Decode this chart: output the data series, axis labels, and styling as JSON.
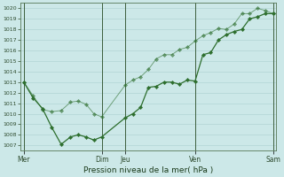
{
  "title": "Pression niveau de la mer( hPa )",
  "ylim": [
    1006.5,
    1020.5
  ],
  "yticks": [
    1007,
    1008,
    1009,
    1010,
    1011,
    1012,
    1013,
    1014,
    1015,
    1016,
    1017,
    1018,
    1019,
    1020
  ],
  "bg_color": "#cce8e8",
  "grid_color": "#aacfcf",
  "line_color": "#2d6e2d",
  "xtick_labels": [
    "Mer",
    "Dim",
    "Jeu",
    "Ven",
    "Sam"
  ],
  "xtick_positions": [
    0,
    5,
    6.5,
    11,
    16
  ],
  "vline_positions": [
    0,
    5,
    6.5,
    11,
    16
  ],
  "line1_x": [
    0,
    0.6,
    1.2,
    1.8,
    2.4,
    3.0,
    3.5,
    4.0,
    4.5,
    5.0,
    6.5,
    7.0,
    7.5,
    8.0,
    8.5,
    9.0,
    9.5,
    10.0,
    10.5,
    11.0,
    11.5,
    12.0,
    12.5,
    13.0,
    13.5,
    14.0,
    14.5,
    15.0,
    15.5,
    16.0
  ],
  "line1_y": [
    1013.0,
    1011.5,
    1010.5,
    1008.7,
    1007.1,
    1007.8,
    1008.0,
    1007.8,
    1007.5,
    1007.8,
    1009.6,
    1010.0,
    1010.6,
    1012.5,
    1012.6,
    1013.0,
    1013.0,
    1012.8,
    1013.2,
    1013.1,
    1015.6,
    1015.8,
    1017.0,
    1017.5,
    1017.8,
    1018.0,
    1019.0,
    1019.2,
    1019.5,
    1019.5
  ],
  "line2_x": [
    0,
    0.6,
    1.2,
    1.8,
    2.4,
    3.0,
    3.5,
    4.0,
    4.5,
    5.0,
    6.5,
    7.0,
    7.5,
    8.0,
    8.5,
    9.0,
    9.5,
    10.0,
    10.5,
    11.0,
    11.5,
    12.0,
    12.5,
    13.0,
    13.5,
    14.0,
    14.5,
    15.0,
    15.5,
    16.0
  ],
  "line2_y": [
    1013.0,
    1011.7,
    1010.4,
    1010.2,
    1010.3,
    1011.1,
    1011.2,
    1010.9,
    1010.0,
    1009.7,
    1012.7,
    1013.2,
    1013.5,
    1014.2,
    1015.2,
    1015.6,
    1015.6,
    1016.1,
    1016.3,
    1016.9,
    1017.4,
    1017.7,
    1018.1,
    1018.0,
    1018.5,
    1019.5,
    1019.5,
    1020.0,
    1019.8,
    1019.5
  ],
  "markersize": 2.2,
  "linewidth": 0.9
}
